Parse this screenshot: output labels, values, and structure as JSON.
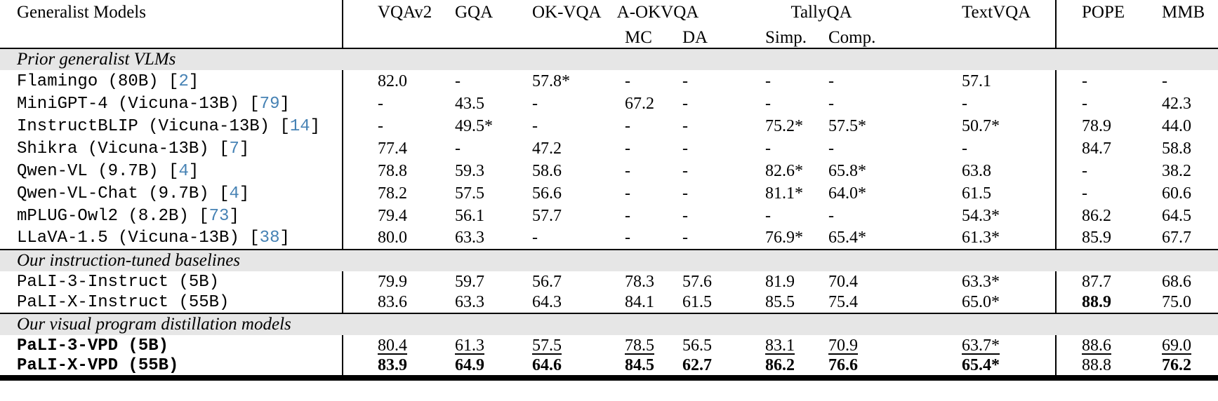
{
  "colors": {
    "citation_link": "#4682b4",
    "section_band_bg": "#e6e6e6",
    "rule": "#000000"
  },
  "citation_format": {
    "open": "[",
    "close": "]"
  },
  "header": {
    "generalist_models": "Generalist Models",
    "vqav2": "VQAv2",
    "gqa": "GQA",
    "okvqa": "OK-VQA",
    "aokvqa": "A-OKVQA",
    "aokvqa_mc": "MC",
    "aokvqa_da": "DA",
    "tallyqa": "TallyQA",
    "tallyqa_simp": "Simp.",
    "tallyqa_comp": "Comp.",
    "textvqa": "TextVQA",
    "pope": "POPE",
    "mmb": "MMB"
  },
  "sections": [
    {
      "label": "Prior generalist VLMs",
      "rows": [
        {
          "model": "Flamingo (80B)",
          "cite": "2",
          "cells": [
            "82.0",
            "-",
            "57.8*",
            "-",
            "-",
            "-",
            "-",
            "57.1",
            "-",
            "-"
          ]
        },
        {
          "model": "MiniGPT-4 (Vicuna-13B)",
          "cite": "79",
          "cells": [
            "-",
            "43.5",
            "-",
            "67.2",
            "-",
            "-",
            "-",
            "-",
            "-",
            "42.3"
          ]
        },
        {
          "model": "InstructBLIP (Vicuna-13B)",
          "cite": "14",
          "cells": [
            "-",
            "49.5*",
            "-",
            "-",
            "-",
            "75.2*",
            "57.5*",
            "50.7*",
            "78.9",
            "44.0"
          ]
        },
        {
          "model": "Shikra (Vicuna-13B)",
          "cite": "7",
          "cells": [
            "77.4",
            "-",
            "47.2",
            "-",
            "-",
            "-",
            "-",
            "-",
            "84.7",
            "58.8"
          ]
        },
        {
          "model": "Qwen-VL (9.7B)",
          "cite": "4",
          "cells": [
            "78.8",
            "59.3",
            "58.6",
            "-",
            "-",
            "82.6*",
            "65.8*",
            "63.8",
            "-",
            "38.2"
          ]
        },
        {
          "model": "Qwen-VL-Chat (9.7B)",
          "cite": "4",
          "cells": [
            "78.2",
            "57.5",
            "56.6",
            "-",
            "-",
            "81.1*",
            "64.0*",
            "61.5",
            "-",
            "60.6"
          ]
        },
        {
          "model": "mPLUG-Owl2 (8.2B)",
          "cite": "73",
          "cells": [
            "79.4",
            "56.1",
            "57.7",
            "-",
            "-",
            "-",
            "-",
            "54.3*",
            "86.2",
            "64.5"
          ]
        },
        {
          "model": "LLaVA-1.5 (Vicuna-13B)",
          "cite": "38",
          "cells": [
            "80.0",
            "63.3",
            "-",
            "-",
            "-",
            "76.9*",
            "65.4*",
            "61.3*",
            "85.9",
            "67.7"
          ]
        }
      ]
    },
    {
      "label": "Our instruction-tuned baselines",
      "rows": [
        {
          "model": "PaLI-3-Instruct (5B)",
          "cells": [
            "79.9",
            "59.7",
            "56.7",
            "78.3",
            "57.6",
            "81.9",
            "70.4",
            "63.3*",
            "87.7",
            "68.6"
          ]
        },
        {
          "model": "PaLI-X-Instruct (55B)",
          "cells": [
            "83.6",
            "63.3",
            "64.3",
            "84.1",
            "61.5",
            "85.5",
            "75.4",
            "65.0*",
            {
              "t": "88.9",
              "b": true
            },
            "75.0"
          ]
        }
      ]
    },
    {
      "label": "Our visual program distillation models",
      "rows": [
        {
          "model": "PaLI-3-VPD (5B)",
          "bold_model": true,
          "cells": [
            {
              "t": "80.4",
              "u": true
            },
            {
              "t": "61.3",
              "u": true
            },
            {
              "t": "57.5",
              "u": true
            },
            {
              "t": "78.5",
              "u": true
            },
            "56.5",
            {
              "t": "83.1",
              "u": true
            },
            {
              "t": "70.9",
              "u": true
            },
            {
              "t": "63.7*",
              "u": true
            },
            {
              "t": "88.6",
              "u": true
            },
            {
              "t": "69.0",
              "u": true
            }
          ]
        },
        {
          "model": "PaLI-X-VPD (55B)",
          "bold_model": true,
          "cells": [
            {
              "t": "83.9",
              "b": true
            },
            {
              "t": "64.9",
              "b": true
            },
            {
              "t": "64.6",
              "b": true
            },
            {
              "t": "84.5",
              "b": true
            },
            {
              "t": "62.7",
              "b": true
            },
            {
              "t": "86.2",
              "b": true
            },
            {
              "t": "76.6",
              "b": true
            },
            {
              "t": "65.4*",
              "b": true
            },
            "88.8",
            {
              "t": "76.2",
              "b": true
            }
          ]
        }
      ]
    }
  ]
}
